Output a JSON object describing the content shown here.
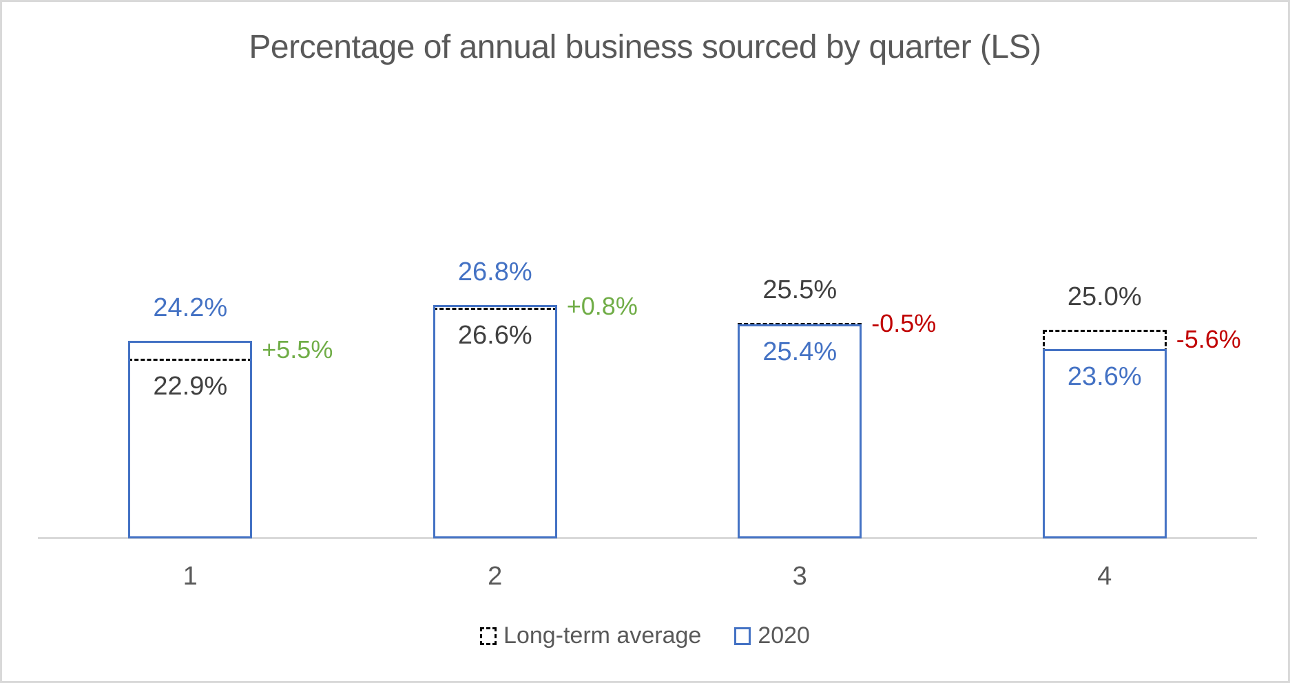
{
  "title": "Percentage of annual business sourced by quarter (LS)",
  "colors": {
    "series_2020": "#4472C4",
    "series_long_term_average": "#000000",
    "label_dark": "#404040",
    "positive_delta": "#70AD47",
    "negative_delta": "#C00000",
    "axis_line": "#D9D9D9",
    "text_gray": "#595959"
  },
  "legend": {
    "long_term_average": "Long-term average",
    "year_2020": "2020"
  },
  "chart_data": {
    "type": "bar",
    "title": "Percentage of annual business sourced by quarter (LS)",
    "categories": [
      "1",
      "2",
      "3",
      "4"
    ],
    "series": [
      {
        "name": "Long-term average",
        "style": "black-dashed-outline",
        "values": [
          22.9,
          26.6,
          25.5,
          25.0
        ]
      },
      {
        "name": "2020",
        "style": "blue-solid-outline",
        "values": [
          24.2,
          26.8,
          25.4,
          23.6
        ]
      }
    ],
    "value_labels": {
      "year_2020": [
        "24.2%",
        "26.8%",
        "25.4%",
        "23.6%"
      ],
      "long_term_average": [
        "22.9%",
        "26.6%",
        "25.5%",
        "25.0%"
      ]
    },
    "delta_labels": [
      "+5.5%",
      "+0.8%",
      "-0.5%",
      "-5.6%"
    ],
    "axis": {
      "y_min": 10,
      "y_axis_labels_visible": false,
      "grid": false,
      "x_axis_line_visible": true
    },
    "legend_position": "bottom",
    "legend_entries": [
      "Long-term average",
      "2020"
    ]
  }
}
